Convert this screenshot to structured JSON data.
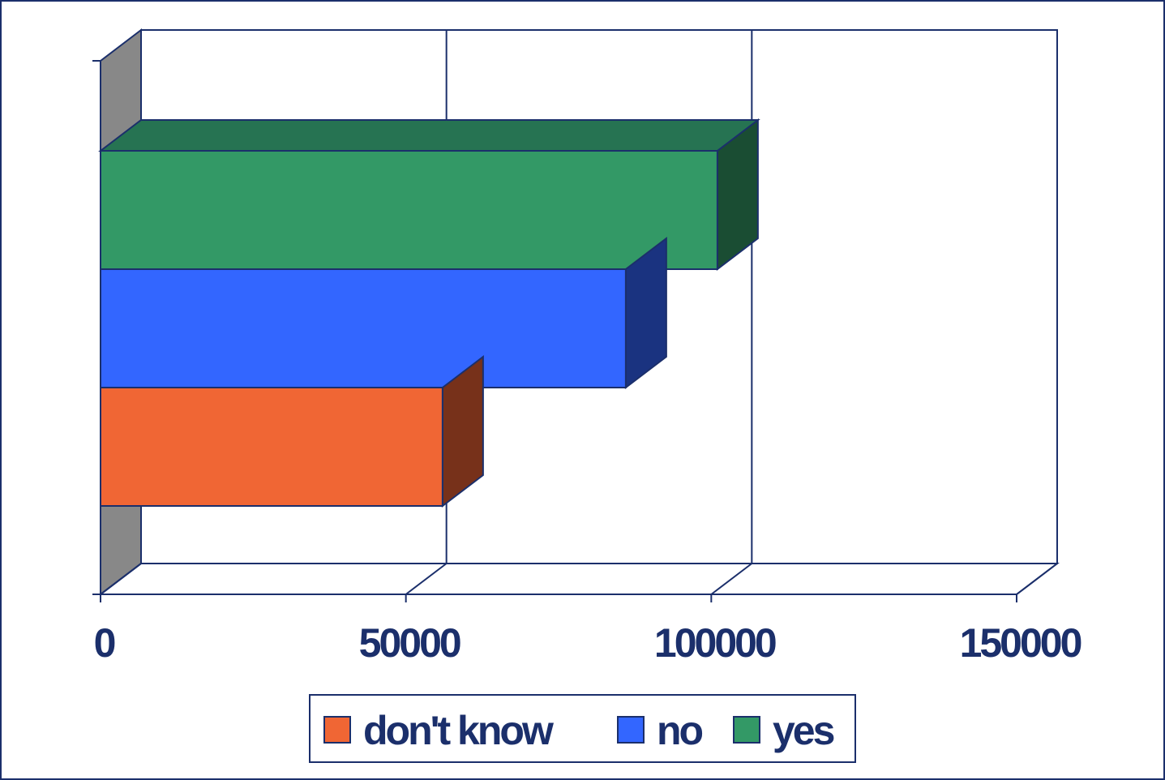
{
  "chart_data": {
    "type": "bar",
    "orientation": "horizontal",
    "style": "3d",
    "categories": [
      ""
    ],
    "series": [
      {
        "name": "don't know",
        "values": [
          56000
        ],
        "color": "#f06634",
        "side_color": "#77311a"
      },
      {
        "name": "no",
        "values": [
          86000
        ],
        "color": "#3366ff",
        "side_color": "#1a3380"
      },
      {
        "name": "yes",
        "values": [
          101000
        ],
        "color": "#339966",
        "side_color": "#1a4d33",
        "top_color": "#267352"
      }
    ],
    "xlim": [
      0,
      150000
    ],
    "x_ticks": [
      0,
      50000,
      100000,
      150000
    ],
    "x_tick_labels": [
      "0",
      "50000",
      "100000",
      "150000"
    ],
    "grid": true,
    "legend": {
      "position": "bottom"
    },
    "title": "",
    "xlabel": "",
    "ylabel": "",
    "colors": {
      "axis": "#1b2f6b",
      "wall": "#888888",
      "background": "#ffffff"
    }
  }
}
